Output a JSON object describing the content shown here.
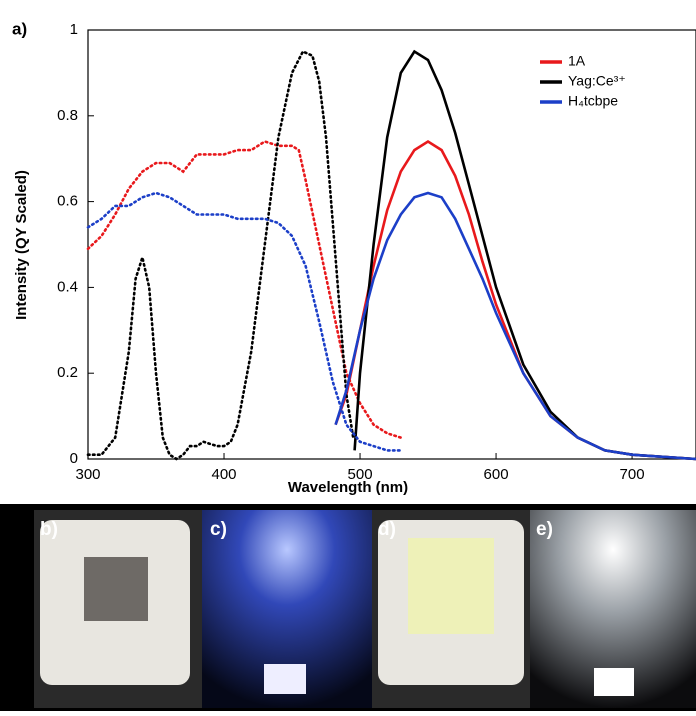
{
  "chart_data": {
    "type": "line",
    "panel_label": "a)",
    "x_label": "Wavelength (nm)",
    "y_label": "Intensity (QY Scaled)",
    "xlim": [
      300,
      747
    ],
    "ylim": [
      0,
      1
    ],
    "xticks": [
      300,
      400,
      500,
      600,
      700
    ],
    "yticks": [
      0,
      0.2,
      0.4,
      0.6,
      0.8,
      1
    ],
    "series": [
      {
        "name": "1A",
        "color": "#e8191c",
        "excitation": {
          "x": [
            300,
            310,
            320,
            330,
            340,
            350,
            360,
            370,
            380,
            390,
            400,
            410,
            420,
            430,
            440,
            450,
            455,
            460,
            470,
            480,
            490,
            500,
            510,
            520,
            530
          ],
          "values": [
            0.49,
            0.52,
            0.57,
            0.63,
            0.67,
            0.69,
            0.69,
            0.67,
            0.71,
            0.71,
            0.71,
            0.72,
            0.72,
            0.74,
            0.73,
            0.73,
            0.72,
            0.65,
            0.5,
            0.35,
            0.2,
            0.13,
            0.08,
            0.06,
            0.05
          ]
        },
        "emission": {
          "x": [
            482,
            490,
            500,
            510,
            520,
            530,
            540,
            550,
            560,
            570,
            580,
            590,
            600,
            620,
            640,
            660,
            680,
            700,
            747
          ],
          "values": [
            0.08,
            0.15,
            0.3,
            0.45,
            0.58,
            0.67,
            0.72,
            0.74,
            0.72,
            0.66,
            0.57,
            0.46,
            0.36,
            0.2,
            0.1,
            0.05,
            0.02,
            0.01,
            0
          ]
        }
      },
      {
        "name": "Yag:Ce³⁺",
        "color": "#000000",
        "excitation": {
          "x": [
            300,
            310,
            320,
            330,
            335,
            340,
            345,
            350,
            355,
            360,
            365,
            370,
            375,
            380,
            385,
            390,
            395,
            400,
            405,
            410,
            420,
            430,
            440,
            450,
            458,
            465,
            470,
            475,
            480,
            485,
            490,
            495
          ],
          "values": [
            0.01,
            0.01,
            0.05,
            0.25,
            0.42,
            0.47,
            0.4,
            0.2,
            0.05,
            0.01,
            0,
            0.01,
            0.03,
            0.03,
            0.04,
            0.035,
            0.03,
            0.03,
            0.04,
            0.08,
            0.25,
            0.5,
            0.75,
            0.9,
            0.95,
            0.94,
            0.88,
            0.75,
            0.55,
            0.35,
            0.15,
            0.05
          ]
        },
        "emission": {
          "x": [
            496,
            500,
            510,
            520,
            530,
            540,
            550,
            560,
            570,
            580,
            590,
            600,
            620,
            640,
            660,
            680,
            700,
            747
          ],
          "values": [
            0.02,
            0.2,
            0.5,
            0.75,
            0.9,
            0.95,
            0.93,
            0.86,
            0.76,
            0.64,
            0.52,
            0.4,
            0.22,
            0.11,
            0.05,
            0.02,
            0.01,
            0
          ]
        }
      },
      {
        "name": "H₄tcbpe",
        "color": "#1c3fc8",
        "excitation": {
          "x": [
            300,
            310,
            320,
            330,
            340,
            350,
            360,
            370,
            380,
            390,
            400,
            410,
            420,
            430,
            440,
            450,
            460,
            470,
            480,
            490,
            500,
            510,
            520,
            530
          ],
          "values": [
            0.54,
            0.56,
            0.59,
            0.59,
            0.61,
            0.62,
            0.61,
            0.59,
            0.57,
            0.57,
            0.57,
            0.56,
            0.56,
            0.56,
            0.55,
            0.52,
            0.45,
            0.32,
            0.18,
            0.08,
            0.04,
            0.03,
            0.02,
            0.02
          ]
        },
        "emission": {
          "x": [
            482,
            490,
            500,
            510,
            520,
            530,
            540,
            550,
            560,
            570,
            580,
            590,
            600,
            620,
            640,
            660,
            680,
            700,
            747
          ],
          "values": [
            0.08,
            0.16,
            0.3,
            0.42,
            0.51,
            0.57,
            0.61,
            0.62,
            0.61,
            0.56,
            0.49,
            0.42,
            0.34,
            0.2,
            0.1,
            0.05,
            0.02,
            0.01,
            0
          ]
        }
      }
    ]
  },
  "photos": [
    "b)",
    "c)",
    "d)",
    "e)"
  ]
}
